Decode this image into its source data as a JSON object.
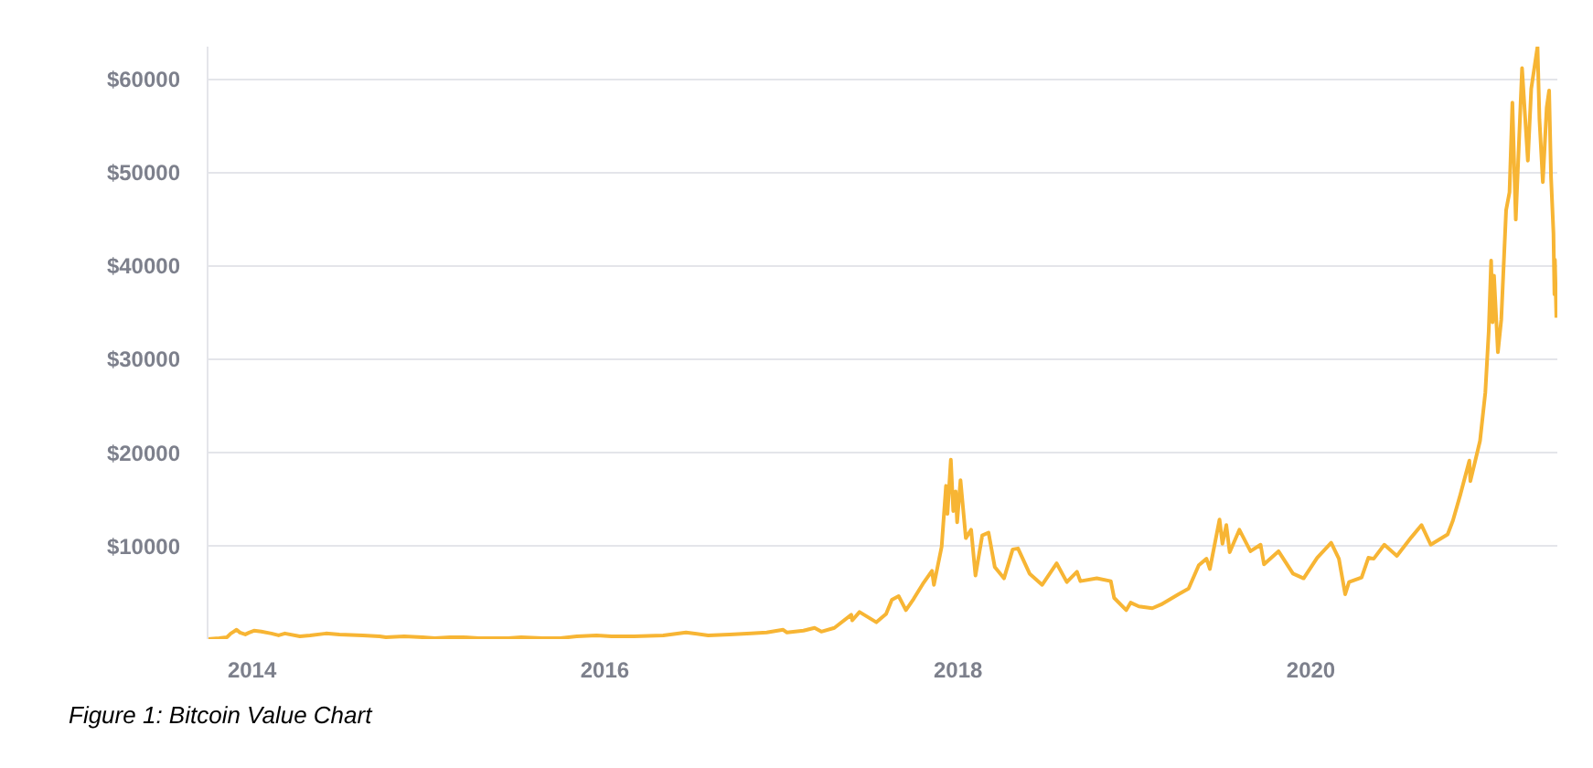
{
  "chart_data": {
    "type": "line",
    "x": [
      "2013-10-01",
      "2013-10-25",
      "2013-11-10",
      "2013-11-18",
      "2013-11-30",
      "2013-12-07",
      "2013-12-18",
      "2013-12-26",
      "2014-01-05",
      "2014-01-20",
      "2014-02-10",
      "2014-02-25",
      "2014-03-10",
      "2014-04-10",
      "2014-05-01",
      "2014-06-03",
      "2014-07-01",
      "2014-08-18",
      "2014-09-22",
      "2014-10-05",
      "2014-11-12",
      "2014-12-20",
      "2015-01-14",
      "2015-02-15",
      "2015-03-15",
      "2015-04-15",
      "2015-06-15",
      "2015-07-12",
      "2015-08-25",
      "2015-10-01",
      "2015-11-04",
      "2015-12-15",
      "2016-01-15",
      "2016-03-01",
      "2016-05-01",
      "2016-06-17",
      "2016-08-02",
      "2016-09-15",
      "2016-10-30",
      "2016-12-01",
      "2017-01-04",
      "2017-01-12",
      "2017-02-15",
      "2017-03-10",
      "2017-03-24",
      "2017-04-20",
      "2017-05-25",
      "2017-05-27",
      "2017-06-11",
      "2017-07-16",
      "2017-08-05",
      "2017-08-17",
      "2017-08-31",
      "2017-09-15",
      "2017-10-01",
      "2017-10-20",
      "2017-11-08",
      "2017-11-12",
      "2017-11-28",
      "2017-12-07",
      "2017-12-10",
      "2017-12-17",
      "2017-12-22",
      "2017-12-27",
      "2017-12-30",
      "2018-01-06",
      "2018-01-17",
      "2018-01-28",
      "2018-02-06",
      "2018-02-20",
      "2018-03-05",
      "2018-03-18",
      "2018-04-06",
      "2018-04-24",
      "2018-05-05",
      "2018-05-29",
      "2018-06-24",
      "2018-07-24",
      "2018-08-14",
      "2018-09-04",
      "2018-09-11",
      "2018-10-15",
      "2018-11-13",
      "2018-11-20",
      "2018-12-15",
      "2018-12-24",
      "2019-01-10",
      "2019-02-07",
      "2019-02-25",
      "2019-04-02",
      "2019-04-23",
      "2019-05-14",
      "2019-05-30",
      "2019-06-06",
      "2019-06-26",
      "2019-07-02",
      "2019-07-10",
      "2019-07-17",
      "2019-08-06",
      "2019-08-29",
      "2019-09-19",
      "2019-09-26",
      "2019-10-26",
      "2019-11-25",
      "2019-12-17",
      "2020-01-14",
      "2020-02-12",
      "2020-02-28",
      "2020-03-12",
      "2020-03-20",
      "2020-04-15",
      "2020-04-29",
      "2020-05-10",
      "2020-06-01",
      "2020-06-27",
      "2020-07-27",
      "2020-08-17",
      "2020-09-05",
      "2020-10-10",
      "2020-10-21",
      "2020-11-05",
      "2020-11-24",
      "2020-11-26",
      "2020-12-16",
      "2020-12-27",
      "2021-01-03",
      "2021-01-08",
      "2021-01-11",
      "2021-01-14",
      "2021-01-22",
      "2021-01-29",
      "2021-02-08",
      "2021-02-15",
      "2021-02-21",
      "2021-02-28",
      "2021-03-13",
      "2021-03-25",
      "2021-04-01",
      "2021-04-14",
      "2021-04-18",
      "2021-04-25",
      "2021-05-03",
      "2021-05-08",
      "2021-05-12",
      "2021-05-17",
      "2021-05-19",
      "2021-05-20",
      "2021-05-23"
    ],
    "series": [
      {
        "color": "#f7b534",
        "values": [
          100,
          200,
          300,
          700,
          1100,
          800,
          600,
          800,
          1000,
          900,
          700,
          500,
          700,
          400,
          500,
          700,
          600,
          500,
          400,
          300,
          400,
          300,
          200,
          300,
          300,
          200,
          200,
          300,
          200,
          200,
          400,
          500,
          400,
          400,
          500,
          800,
          500,
          600,
          700,
          800,
          1100,
          800,
          1000,
          1300,
          900,
          1300,
          2700,
          2100,
          3000,
          1900,
          2800,
          4300,
          4700,
          3200,
          4400,
          6000,
          7400,
          5900,
          10000,
          16500,
          13500,
          19300,
          13800,
          15900,
          12600,
          17100,
          10900,
          11800,
          6900,
          11200,
          11500,
          7800,
          6600,
          9700,
          9800,
          7100,
          5900,
          8200,
          6200,
          7300,
          6300,
          6600,
          6300,
          4500,
          3200,
          4000,
          3600,
          3400,
          3800,
          4900,
          5500,
          8000,
          8700,
          7600,
          12900,
          10300,
          12300,
          9400,
          11800,
          9500,
          10200,
          8100,
          9500,
          7100,
          6600,
          8800,
          10400,
          8700,
          4900,
          6200,
          6700,
          8800,
          8700,
          10200,
          9000,
          11000,
          12300,
          10200,
          11300,
          12800,
          15500,
          19200,
          17000,
          21300,
          26500,
          33000,
          40600,
          34000,
          39000,
          30800,
          34300,
          46000,
          47900,
          57500,
          45000,
          61200,
          51300,
          59000,
          63500,
          55700,
          49000,
          57000,
          58800,
          49500,
          43500,
          37000,
          40700,
          34500
        ]
      }
    ],
    "xlim": [
      "2013-10-01",
      "2021-05-25"
    ],
    "ylim": [
      100,
      63500
    ],
    "xticks": [
      {
        "value": "2014-01-01",
        "label": "2014"
      },
      {
        "value": "2016-01-01",
        "label": "2016"
      },
      {
        "value": "2018-01-01",
        "label": "2018"
      },
      {
        "value": "2020-01-01",
        "label": "2020"
      }
    ],
    "yticks": [
      {
        "value": 10000,
        "label": "$10000"
      },
      {
        "value": 20000,
        "label": "$20000"
      },
      {
        "value": 30000,
        "label": "$30000"
      },
      {
        "value": 40000,
        "label": "$40000"
      },
      {
        "value": 50000,
        "label": "$50000"
      },
      {
        "value": 60000,
        "label": "$60000"
      }
    ],
    "grid": "y",
    "annotations": [
      "Figure 1: Bitcoin Value Chart"
    ]
  }
}
